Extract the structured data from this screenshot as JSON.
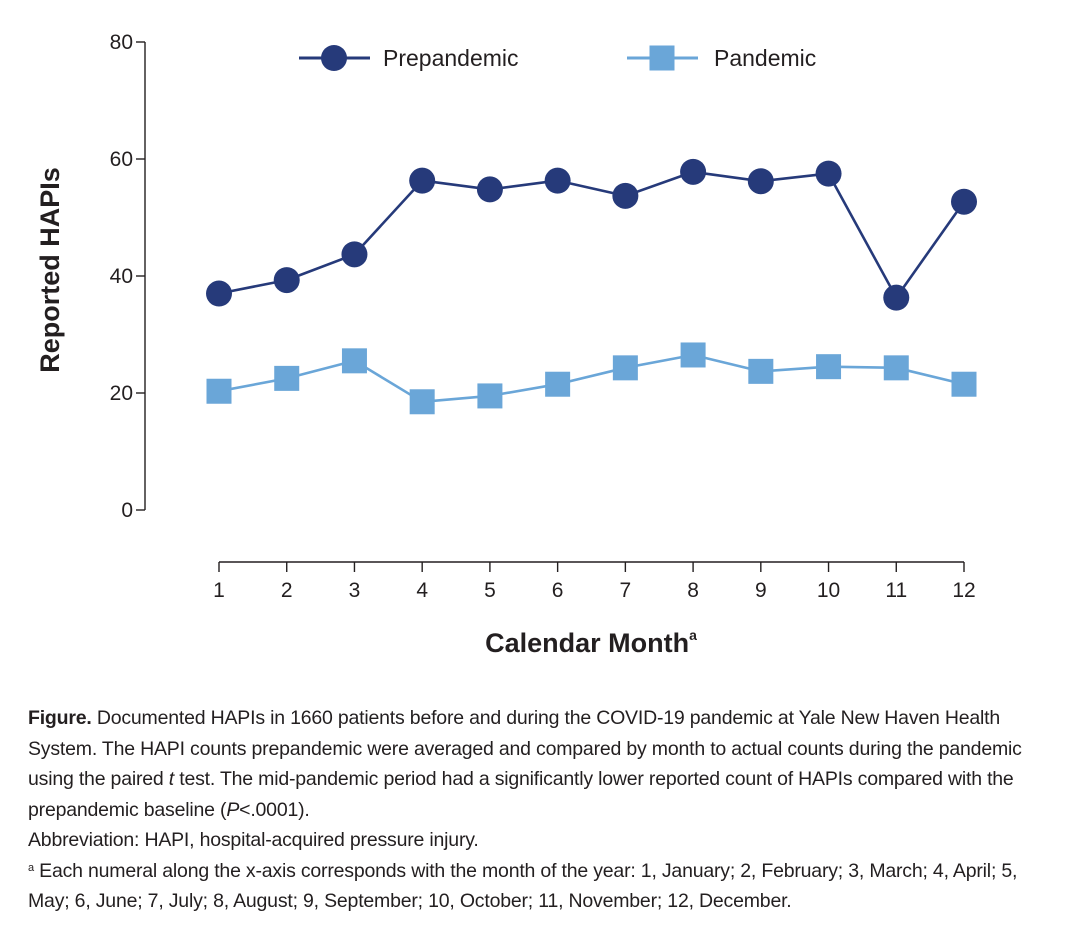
{
  "chart_data": {
    "type": "line",
    "x": [
      1,
      2,
      3,
      4,
      5,
      6,
      7,
      8,
      9,
      10,
      11,
      12
    ],
    "ylim": [
      0,
      80
    ],
    "yticks": [
      0,
      20,
      40,
      60,
      80
    ],
    "ylabel": "Reported HAPIs",
    "xlabel": "Calendar Month",
    "xlabel_superscript": "a",
    "legend_position": "top",
    "series": [
      {
        "name": "Prepandemic",
        "marker": "circle",
        "color": "#263a7a",
        "values": [
          37,
          39.3,
          43.7,
          56.3,
          54.8,
          56.3,
          53.7,
          57.8,
          56.2,
          57.5,
          36.3,
          52.7
        ]
      },
      {
        "name": "Pandemic",
        "marker": "square",
        "color": "#6aa6d8",
        "values": [
          20.3,
          22.5,
          25.5,
          18.5,
          19.5,
          21.5,
          24.3,
          26.5,
          23.7,
          24.5,
          24.3,
          21.5
        ]
      }
    ]
  },
  "caption": {
    "figure_label": "Figure.",
    "text_1": " Documented HAPIs in 1660 patients before and during the COVID-19 pandemic at Yale New Haven Health System. The HAPI counts prepandemic were averaged and compared by month to actual counts during the pandemic using the paired ",
    "t_italic": "t",
    "text_2": " test. The mid-pandemic period had a significantly lower reported count of HAPIs compared with the prepandemic baseline (",
    "p_italic": "P",
    "text_3": "<.0001).",
    "abbreviation": "Abbreviation: HAPI, hospital-acquired pressure injury.",
    "footnote_mark": "a",
    "footnote": " Each numeral along the x-axis corresponds with the month of the year: 1, January; 2, February; 3, March; 4, April; 5, May; 6, June; 7, July; 8, August; 9, September; 10, October; 11, November; 12, December."
  }
}
